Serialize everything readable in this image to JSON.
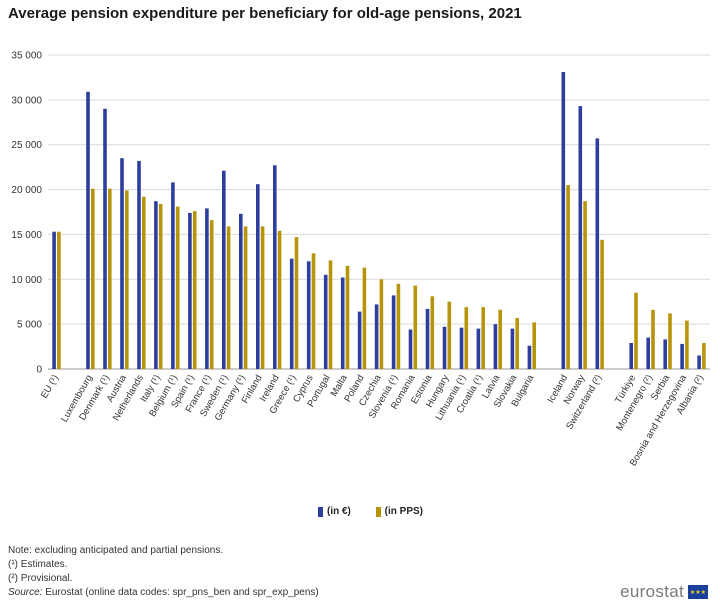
{
  "title": "Average pension expenditure per beneficiary for old-age pensions, 2021",
  "colors": {
    "euro": "#2e3e9e",
    "pps": "#b7950b",
    "grid": "#d9d9d9"
  },
  "chart_data": {
    "type": "bar",
    "title": "Average pension expenditure per beneficiary for old-age pensions, 2021",
    "ylim": [
      0,
      35000
    ],
    "yticks": [
      0,
      5000,
      10000,
      15000,
      20000,
      25000,
      30000,
      35000
    ],
    "ytick_labels": [
      "0",
      "5 000",
      "10 000",
      "15 000",
      "20 000",
      "25 000",
      "30 000",
      "35 000"
    ],
    "categories": [
      "EU (¹)",
      "",
      "Luxembourg",
      "Denmark (¹)",
      "Austria",
      "Netherlands",
      "Italy (¹)",
      "Belgium (¹)",
      "Spain (¹)",
      "France (¹)",
      "Sweden (¹)",
      "Germany (¹)",
      "Finland",
      "Ireland",
      "Greece (¹)",
      "Cyprus",
      "Portugal",
      "Malta",
      "Poland",
      "Czechia",
      "Slovenia (¹)",
      "Romania",
      "Estonia",
      "Hungary",
      "Lithuania (¹)",
      "Croatia (¹)",
      "Latvia",
      "Slovakia",
      "Bulgaria",
      "",
      "Iceland",
      "Norway",
      "Switzerland (²)",
      "",
      "Türkiye",
      "Montenegro (²)",
      "Serbia",
      "Bosnia and Herzegovina",
      "Albania (²)"
    ],
    "series": [
      {
        "name": "(in €)",
        "values": [
          15300,
          null,
          30900,
          29000,
          23500,
          23200,
          18700,
          20800,
          17400,
          17900,
          22100,
          17300,
          20600,
          22700,
          12300,
          12000,
          10500,
          10200,
          6400,
          7200,
          8200,
          4400,
          6700,
          4700,
          4600,
          4500,
          5000,
          4500,
          2600,
          null,
          33100,
          29300,
          25700,
          null,
          2900,
          3500,
          3300,
          2800,
          1500
        ]
      },
      {
        "name": "(in PPS)",
        "values": [
          15300,
          null,
          20100,
          20100,
          19900,
          19200,
          18400,
          18100,
          17600,
          16600,
          15900,
          15900,
          15900,
          15400,
          14700,
          12900,
          12100,
          11500,
          11300,
          10000,
          9500,
          9300,
          8100,
          7500,
          6900,
          6900,
          6600,
          5700,
          5200,
          null,
          20500,
          18700,
          14400,
          null,
          8500,
          6600,
          6200,
          5400,
          2900
        ]
      }
    ]
  },
  "legend": {
    "euro_label": "(in €)",
    "pps_label": "(in PPS)"
  },
  "notes": {
    "line1": "Note: excluding anticipated and partial pensions.",
    "line2": "(¹) Estimates.",
    "line3": "(²) Provisional.",
    "source_label": "Source:",
    "source_text": " Eurostat (online data codes: spr_pns_ben and spr_exp_pens)"
  },
  "logo": {
    "text": "eurostat"
  }
}
